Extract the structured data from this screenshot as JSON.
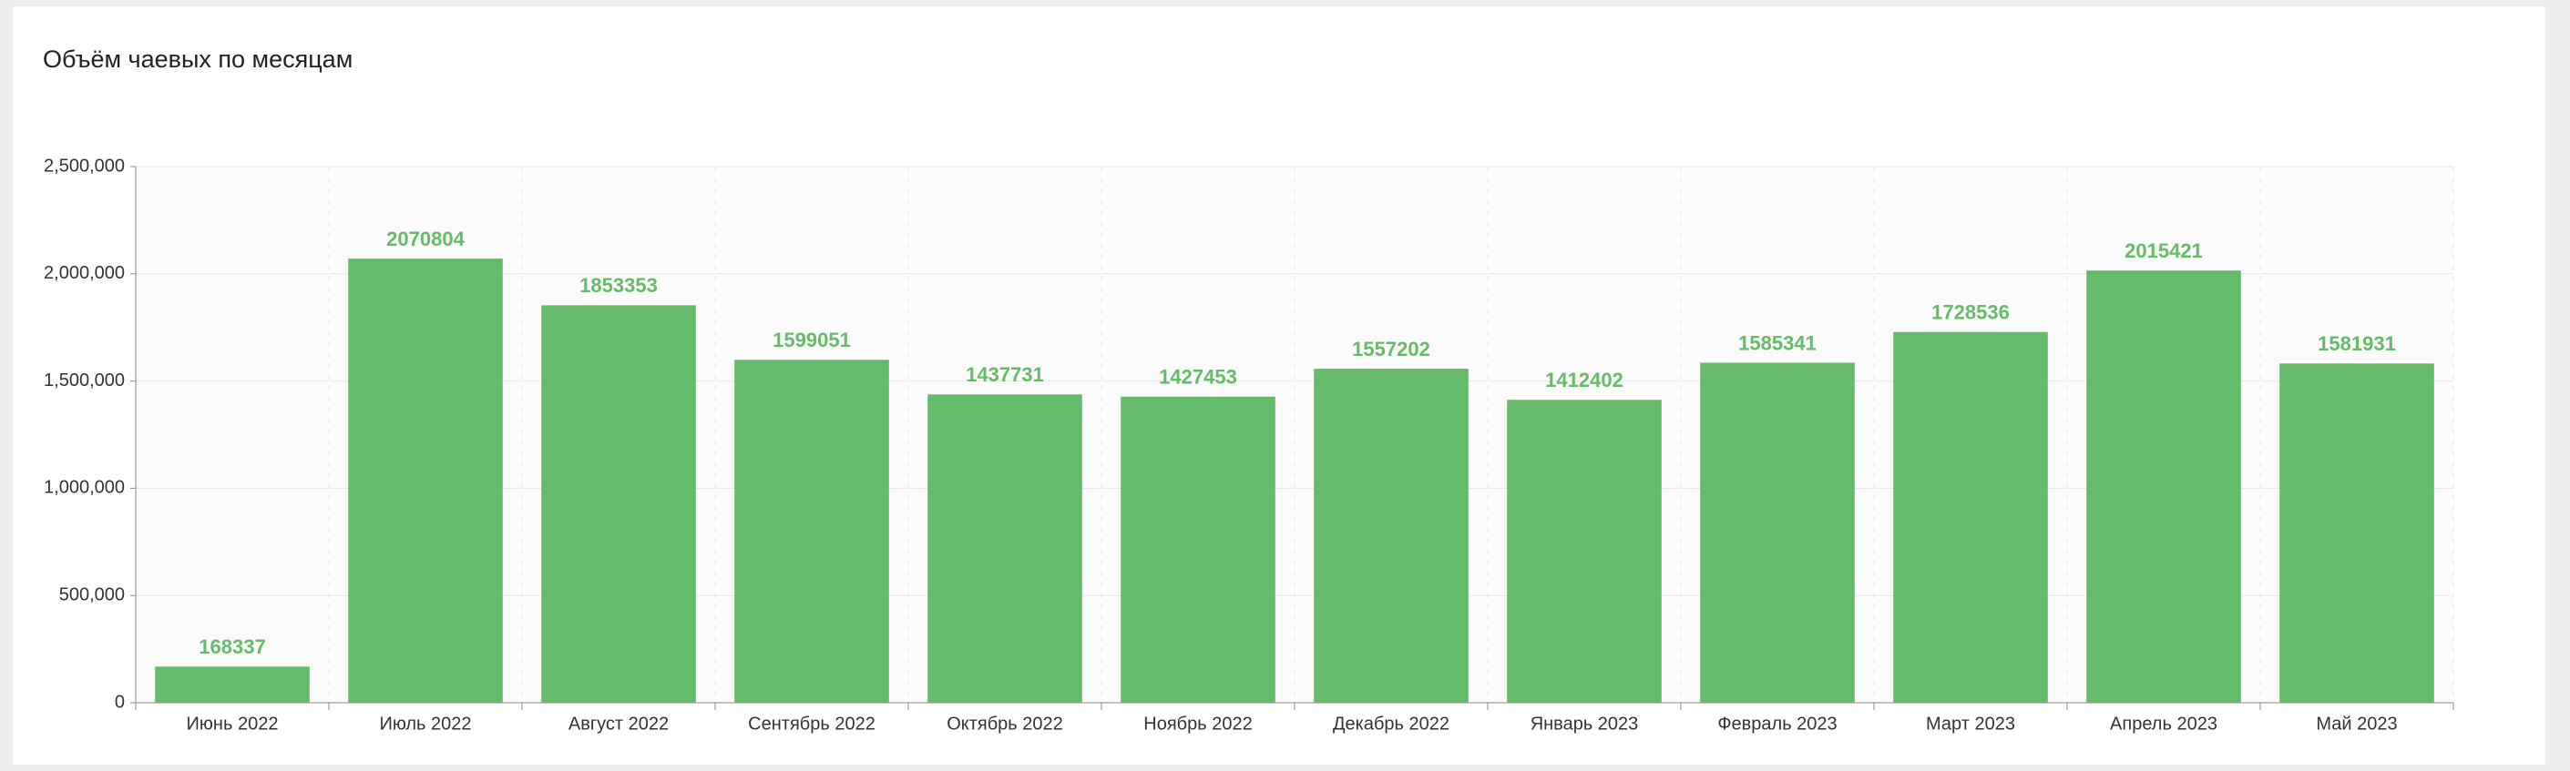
{
  "chart_data": {
    "type": "bar",
    "title": "Объём чаевых по месяцам",
    "categories": [
      "Июнь 2022",
      "Июль 2022",
      "Август 2022",
      "Сентябрь 2022",
      "Октябрь 2022",
      "Ноябрь 2022",
      "Декабрь 2022",
      "Январь 2023",
      "Февраль 2023",
      "Март 2023",
      "Апрель 2023",
      "Май 2023"
    ],
    "values": [
      168337,
      2070804,
      1853353,
      1599051,
      1437731,
      1427453,
      1557202,
      1412402,
      1585341,
      1728536,
      2015421,
      1581931
    ],
    "color": "#66bb6a",
    "ylim": [
      0,
      2500000
    ],
    "yticks": [
      0,
      {
        "value": 500000,
        "label": "500,000"
      },
      {
        "value": 1000000,
        "label": "1,000,000"
      },
      {
        "value": 1500000,
        "label": "1,500,000"
      },
      {
        "value": 2000000,
        "label": "2,000,000"
      },
      {
        "value": 2500000,
        "label": "2,500,000"
      }
    ],
    "grid": true
  }
}
